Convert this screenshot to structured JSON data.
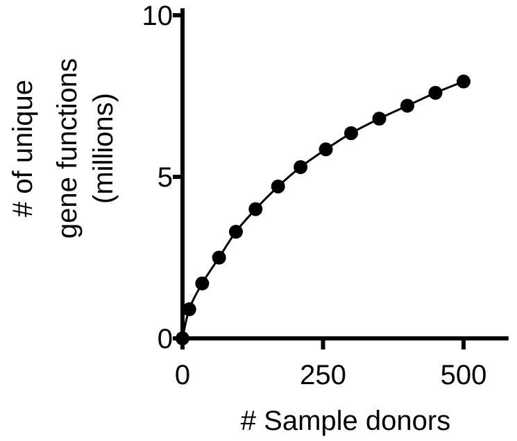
{
  "chart_data": {
    "type": "scatter",
    "title": "",
    "xlabel": "# Sample donors",
    "ylabel_lines": [
      "# of unique",
      "gene functions",
      "(millions)"
    ],
    "xlim": [
      0,
      580
    ],
    "ylim": [
      0,
      10
    ],
    "x_ticks": [
      {
        "value": 0,
        "label": "0"
      },
      {
        "value": 250,
        "label": "250"
      },
      {
        "value": 500,
        "label": "500"
      }
    ],
    "y_ticks": [
      {
        "value": 0,
        "label": "0"
      },
      {
        "value": 5,
        "label": "5"
      },
      {
        "value": 10,
        "label": "10"
      }
    ],
    "grid": false,
    "legend": "none",
    "series": [
      {
        "points": [
          {
            "x": 0,
            "y": 0
          },
          {
            "x": 12,
            "y": 0.9
          },
          {
            "x": 35,
            "y": 1.7
          },
          {
            "x": 65,
            "y": 2.5
          },
          {
            "x": 95,
            "y": 3.3
          },
          {
            "x": 130,
            "y": 4.0
          },
          {
            "x": 170,
            "y": 4.7
          },
          {
            "x": 210,
            "y": 5.3
          },
          {
            "x": 255,
            "y": 5.85
          },
          {
            "x": 300,
            "y": 6.35
          },
          {
            "x": 350,
            "y": 6.8
          },
          {
            "x": 400,
            "y": 7.2
          },
          {
            "x": 450,
            "y": 7.6
          },
          {
            "x": 500,
            "y": 7.95
          }
        ],
        "fit_curve": true,
        "color": "#000000"
      }
    ]
  }
}
